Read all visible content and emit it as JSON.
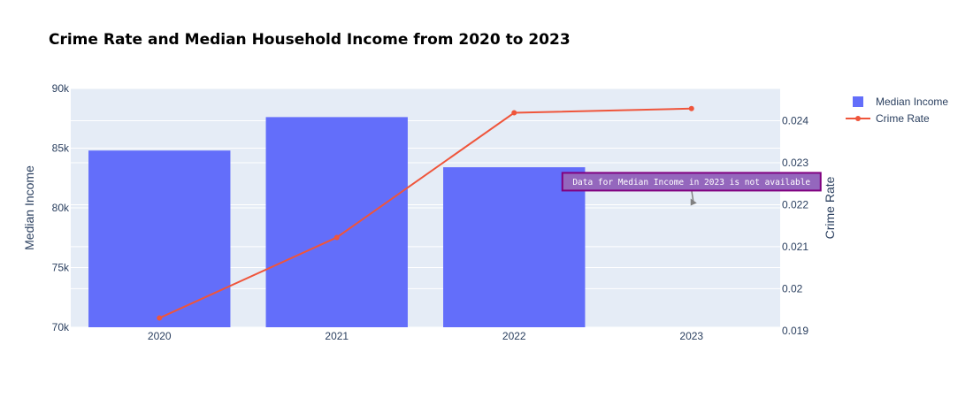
{
  "chart_data": {
    "type": "bar",
    "title": "Crime Rate and Median Household Income from 2020 to 2023",
    "categories": [
      "2020",
      "2021",
      "2022",
      "2023"
    ],
    "series": [
      {
        "name": "Median Income",
        "type": "bar",
        "axis": "left",
        "values": [
          84800,
          87600,
          83400,
          null
        ]
      },
      {
        "name": "Crime Rate",
        "type": "line",
        "axis": "right",
        "values": [
          0.0193,
          0.02122,
          0.02419,
          0.02429
        ]
      }
    ],
    "ylabel": "Median Income",
    "ylim": [
      70000,
      90000
    ],
    "yticks": [
      70000,
      75000,
      80000,
      85000,
      90000
    ],
    "ytick_labels": [
      "70k",
      "75k",
      "80k",
      "85k",
      "90k"
    ],
    "y2label": "Crime Rate",
    "y2lim": [
      0.01908,
      0.02477
    ],
    "y2ticks": [
      0.019,
      0.02,
      0.021,
      0.022,
      0.023,
      0.024
    ],
    "y2tick_labels": [
      "0.019",
      "0.02",
      "0.021",
      "0.022",
      "0.023",
      "0.024"
    ],
    "grid": true,
    "legend_position": "top-right",
    "annotation": {
      "text": "Data for Median Income in 2023 is not available",
      "category": "2023"
    },
    "colors": {
      "bar": "#636efa",
      "line": "#ef553b",
      "plot_bg": "#e5ecf6",
      "grid": "#ffffff",
      "annotation_bg": "#9467bd",
      "annotation_border": "#800080",
      "arrow": "#808080"
    }
  }
}
